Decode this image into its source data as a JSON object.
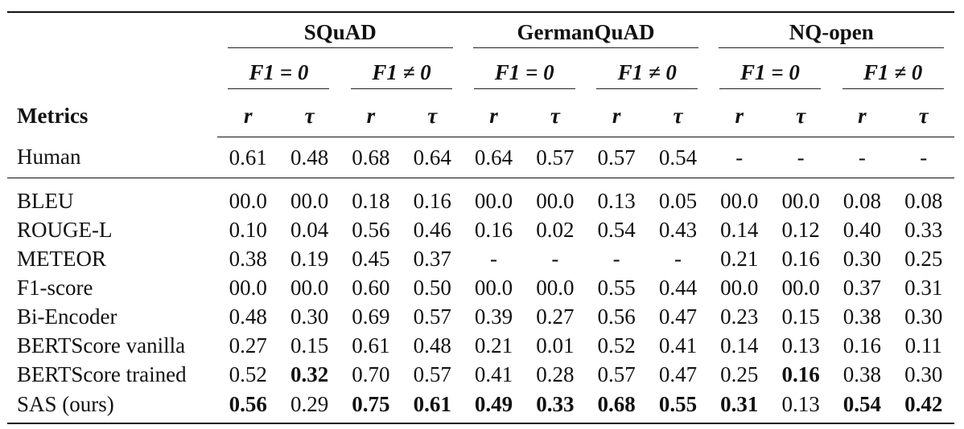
{
  "table": {
    "metrics_header": "Metrics",
    "datasets": [
      "SQuAD",
      "GermanQuAD",
      "NQ-open"
    ],
    "conditions": [
      "F1 = 0",
      "F1 ≠ 0"
    ],
    "stats": [
      "r",
      "τ"
    ],
    "rows": [
      {
        "metric": "Human",
        "values": [
          "0.61",
          "0.48",
          "0.68",
          "0.64",
          "0.64",
          "0.57",
          "0.57",
          "0.54",
          "-",
          "-",
          "-",
          "-"
        ],
        "bold": []
      },
      {
        "metric": "BLEU",
        "values": [
          "00.0",
          "00.0",
          "0.18",
          "0.16",
          "00.0",
          "00.0",
          "0.13",
          "0.05",
          "00.0",
          "00.0",
          "0.08",
          "0.08"
        ],
        "bold": []
      },
      {
        "metric": "ROUGE-L",
        "values": [
          "0.10",
          "0.04",
          "0.56",
          "0.46",
          "0.16",
          "0.02",
          "0.54",
          "0.43",
          "0.14",
          "0.12",
          "0.40",
          "0.33"
        ],
        "bold": []
      },
      {
        "metric": "METEOR",
        "values": [
          "0.38",
          "0.19",
          "0.45",
          "0.37",
          "-",
          "-",
          "-",
          "-",
          "0.21",
          "0.16",
          "0.30",
          "0.25"
        ],
        "bold": []
      },
      {
        "metric": "F1-score",
        "values": [
          "00.0",
          "00.0",
          "0.60",
          "0.50",
          "00.0",
          "00.0",
          "0.55",
          "0.44",
          "00.0",
          "00.0",
          "0.37",
          "0.31"
        ],
        "bold": []
      },
      {
        "metric": "Bi-Encoder",
        "values": [
          "0.48",
          "0.30",
          "0.69",
          "0.57",
          "0.39",
          "0.27",
          "0.56",
          "0.47",
          "0.23",
          "0.15",
          "0.38",
          "0.30"
        ],
        "bold": []
      },
      {
        "metric": "BERTScore vanilla",
        "values": [
          "0.27",
          "0.15",
          "0.61",
          "0.48",
          "0.21",
          "0.01",
          "0.52",
          "0.41",
          "0.14",
          "0.13",
          "0.16",
          "0.11"
        ],
        "bold": []
      },
      {
        "metric": "BERTScore trained",
        "values": [
          "0.52",
          "0.32",
          "0.70",
          "0.57",
          "0.41",
          "0.28",
          "0.57",
          "0.47",
          "0.25",
          "0.16",
          "0.38",
          "0.30"
        ],
        "bold": [
          1,
          9
        ]
      },
      {
        "metric": "SAS (ours)",
        "values": [
          "0.56",
          "0.29",
          "0.75",
          "0.61",
          "0.49",
          "0.33",
          "0.68",
          "0.55",
          "0.31",
          "0.13",
          "0.54",
          "0.42"
        ],
        "bold": [
          0,
          2,
          3,
          4,
          5,
          6,
          7,
          8,
          10,
          11
        ]
      }
    ]
  }
}
